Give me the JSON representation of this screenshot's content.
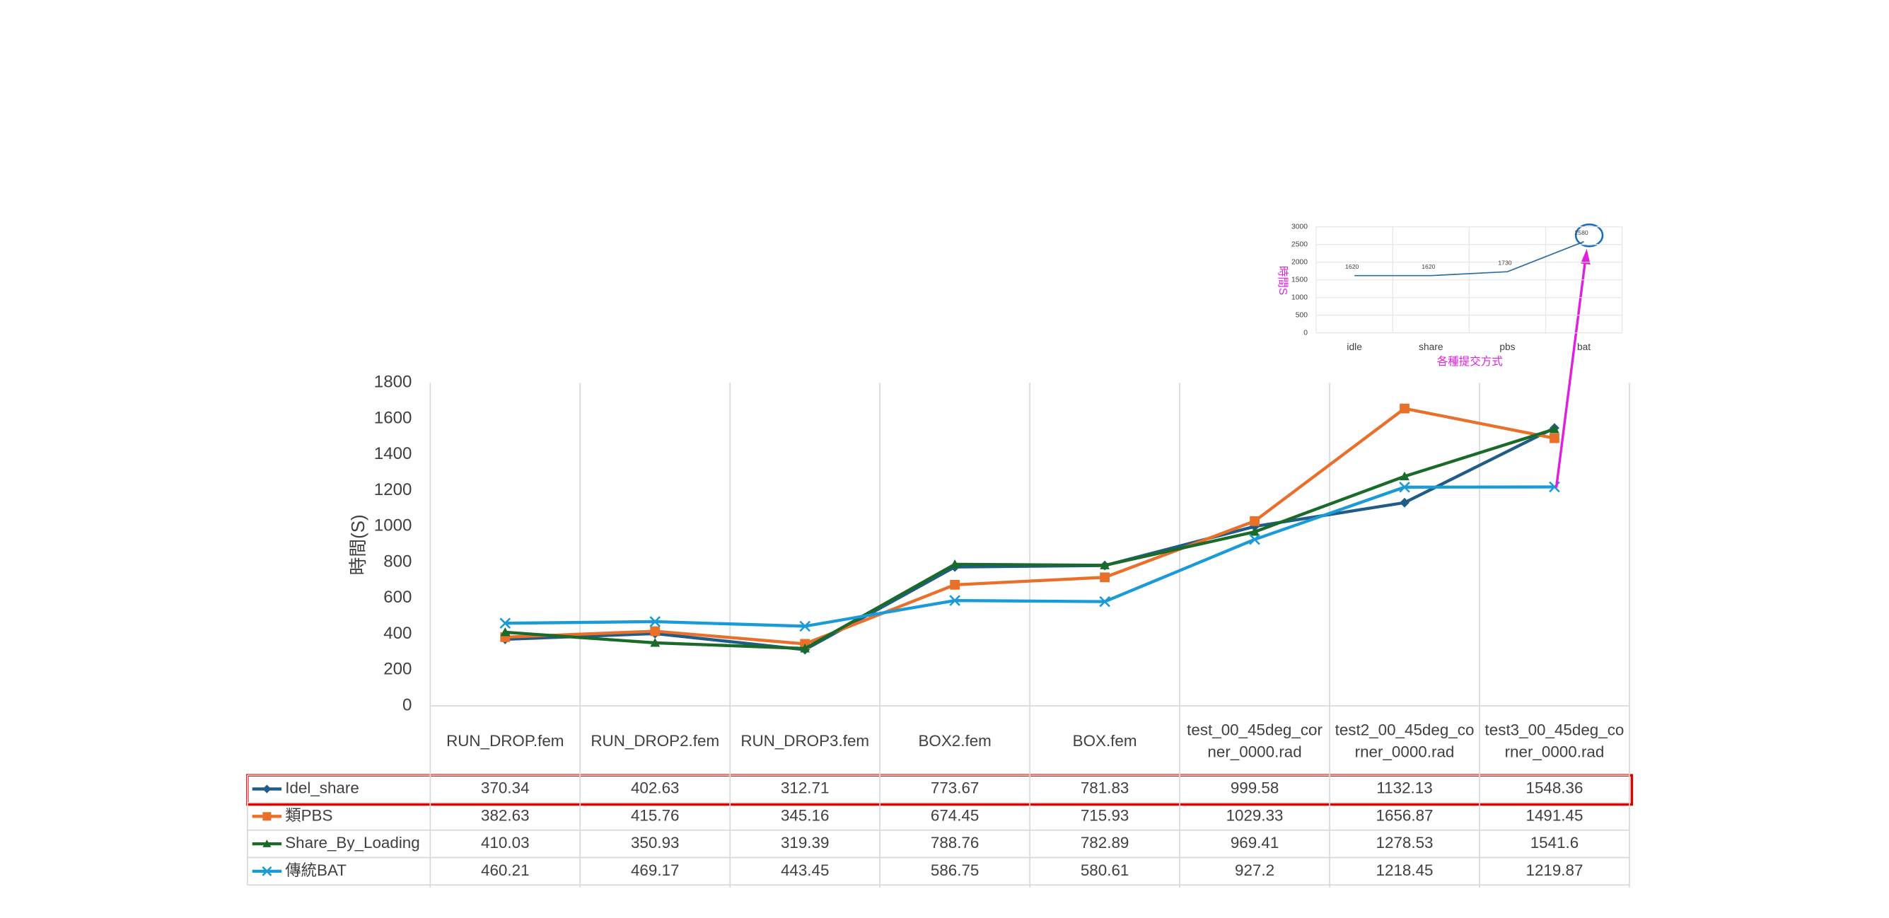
{
  "chart_data": [
    {
      "type": "line",
      "ylabel": "時間(S)",
      "categories": [
        "RUN_DROP.fem",
        "RUN_DROP2.fem",
        "RUN_DROP3.fem",
        "BOX2.fem",
        "BOX.fem",
        "test_00_45deg_corner_0000.rad",
        "test2_00_45deg_corner_0000.rad",
        "test3_00_45deg_corner_0000.rad"
      ],
      "series": [
        {
          "name": "Idel_share",
          "color": "#1f5c87",
          "marker": "diamond",
          "values": [
            370.34,
            402.63,
            312.71,
            773.67,
            781.83,
            999.58,
            1132.13,
            1548.36
          ]
        },
        {
          "name": "類PBS",
          "color": "#e8702a",
          "marker": "square",
          "values": [
            382.63,
            415.76,
            345.16,
            674.45,
            715.93,
            1029.33,
            1656.87,
            1491.45
          ]
        },
        {
          "name": "Share_By_Loading",
          "color": "#1a6b2a",
          "marker": "triangle",
          "values": [
            410.03,
            350.93,
            319.39,
            788.76,
            782.89,
            969.41,
            1278.53,
            1541.6
          ]
        },
        {
          "name": "傳統BAT",
          "color": "#1a9bd7",
          "marker": "x",
          "values": [
            460.21,
            469.17,
            443.45,
            586.75,
            580.61,
            927.2,
            1218.45,
            1219.87
          ]
        }
      ],
      "ylim": [
        0,
        1800
      ],
      "yticks": [
        0,
        200,
        400,
        600,
        800,
        1000,
        1200,
        1400,
        1600,
        1800
      ],
      "grid": true
    },
    {
      "type": "line",
      "ylabel": "時間S",
      "xlabel": "各種提交方式",
      "categories": [
        "idle",
        "share",
        "pbs",
        "bat"
      ],
      "values": [
        1620,
        1620,
        1730,
        2580
      ],
      "color": "#2e6fa0",
      "ylim": [
        0,
        3000
      ],
      "yticks": [
        0,
        500,
        1000,
        1500,
        2000,
        2500,
        3000
      ],
      "grid": true
    }
  ]
}
